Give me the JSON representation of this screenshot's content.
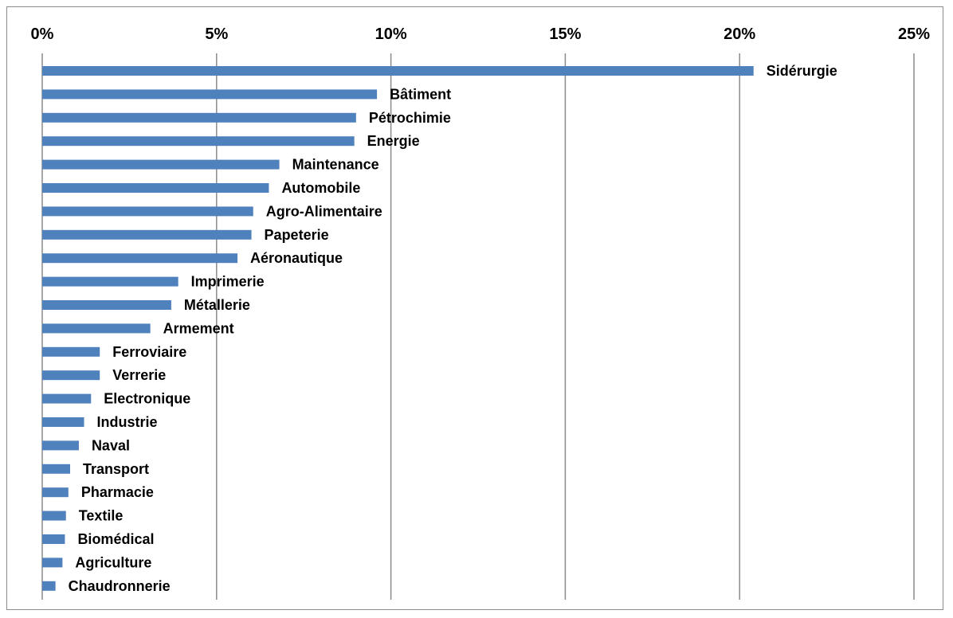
{
  "chart_data": {
    "type": "bar",
    "orientation": "horizontal",
    "title": "",
    "xlabel": "",
    "ylabel": "",
    "xlim": [
      0,
      25
    ],
    "x_ticks": [
      "0%",
      "5%",
      "10%",
      "15%",
      "20%",
      "25%"
    ],
    "x_tick_values": [
      0,
      5,
      10,
      15,
      20,
      25
    ],
    "x_axis_position": "top",
    "grid": true,
    "bar_color": "#4f81bd",
    "categories": [
      "Sidérurgie",
      "Bâtiment",
      "Pétrochimie",
      "Energie",
      "Maintenance",
      "Automobile",
      "Agro-Alimentaire",
      "Papeterie",
      "Aéronautique",
      "Imprimerie",
      "Métallerie",
      "Armement",
      "Ferroviaire",
      "Verrerie",
      "Electronique",
      "Industrie",
      "Naval",
      "Transport",
      "Pharmacie",
      "Textile",
      "Biomédical",
      "Agriculture",
      "Chaudronnerie"
    ],
    "values": [
      20.4,
      9.6,
      9.0,
      8.95,
      6.8,
      6.5,
      6.05,
      6.0,
      5.6,
      3.9,
      3.7,
      3.1,
      1.65,
      1.65,
      1.4,
      1.2,
      1.05,
      0.8,
      0.75,
      0.68,
      0.65,
      0.58,
      0.38
    ]
  }
}
